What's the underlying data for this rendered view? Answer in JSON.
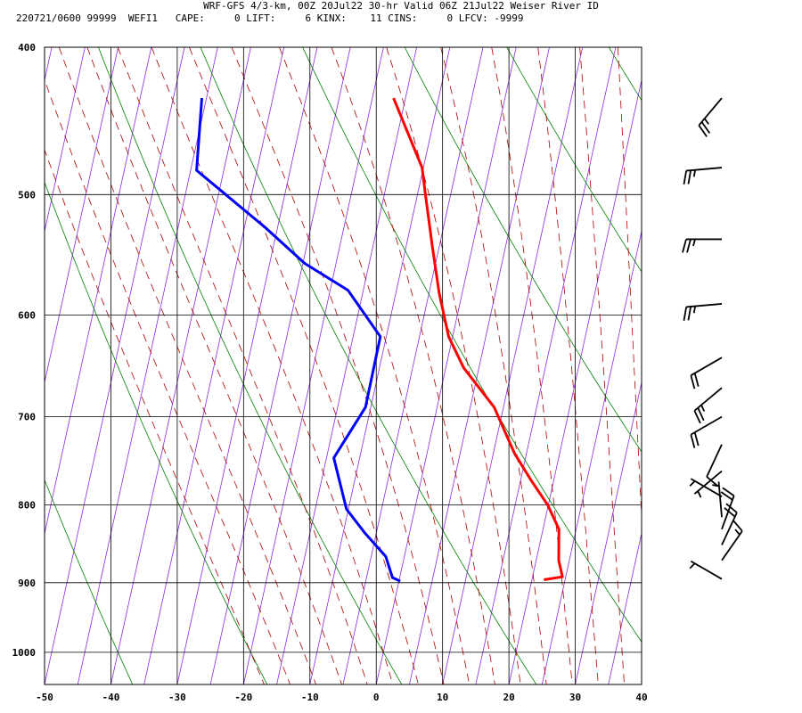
{
  "header": {
    "title": "WRF-GFS 4/3-km, 00Z 20Jul22 30-hr Valid 06Z 21Jul22 Weiser River ID",
    "indices": "220721/0600 99999  WEFI1   CAPE:     0 LIFT:     6 KINX:    11 CINS:     0 LFCV: -9999"
  },
  "colors": {
    "temperature": "#ff0000",
    "dewpoint": "#0000ff",
    "isotherm": "#8a2be2",
    "dry_adiabat": "#008000",
    "moist_adiabat": "#b00000",
    "grid": "#000000",
    "wind_barb": "#000000"
  },
  "chart_data": {
    "type": "line",
    "chart_kind": "skew-T log-p sounding",
    "y_scale": "log",
    "y_reversed": true,
    "ylim": [
      400,
      1050
    ],
    "xlim": [
      -50,
      40
    ],
    "x_ticks": [
      -50,
      -40,
      -30,
      -20,
      -10,
      0,
      10,
      20,
      30,
      40
    ],
    "y_ticks": [
      400,
      500,
      600,
      700,
      800,
      900,
      1000
    ],
    "grid": true,
    "series": [
      {
        "key": "temperature",
        "points": [
          [
            432,
            -16.8
          ],
          [
            480,
            -10.2
          ],
          [
            500,
            -8.8
          ],
          [
            540,
            -6.1
          ],
          [
            580,
            -3.5
          ],
          [
            620,
            -0.6
          ],
          [
            650,
            2.7
          ],
          [
            690,
            8.6
          ],
          [
            740,
            13.2
          ],
          [
            770,
            16.5
          ],
          [
            800,
            19.9
          ],
          [
            830,
            22.4
          ],
          [
            870,
            23.4
          ],
          [
            892,
            24.5
          ],
          [
            896,
            21.8
          ]
        ]
      },
      {
        "key": "dewpoint",
        "points": [
          [
            432,
            -45.7
          ],
          [
            482,
            -44.1
          ],
          [
            525,
            -32.0
          ],
          [
            555,
            -24.7
          ],
          [
            578,
            -17.3
          ],
          [
            620,
            -10.9
          ],
          [
            690,
            -10.8
          ],
          [
            745,
            -13.9
          ],
          [
            805,
            -10.3
          ],
          [
            835,
            -6.7
          ],
          [
            865,
            -2.8
          ],
          [
            893,
            -1.1
          ],
          [
            898,
            0.2
          ]
        ]
      }
    ],
    "wind_barbs": [
      {
        "p": 432,
        "dir": 220,
        "spd": 25
      },
      {
        "p": 480,
        "dir": 265,
        "spd": 25
      },
      {
        "p": 535,
        "dir": 270,
        "spd": 25
      },
      {
        "p": 590,
        "dir": 265,
        "spd": 25
      },
      {
        "p": 640,
        "dir": 240,
        "spd": 20
      },
      {
        "p": 670,
        "dir": 230,
        "spd": 25
      },
      {
        "p": 700,
        "dir": 240,
        "spd": 20
      },
      {
        "p": 730,
        "dir": 205,
        "spd": 10
      },
      {
        "p": 760,
        "dir": 230,
        "spd": 5
      },
      {
        "p": 790,
        "dir": 300,
        "spd": 5
      },
      {
        "p": 815,
        "dir": 355,
        "spd": 5
      },
      {
        "p": 830,
        "dir": 20,
        "spd": 20
      },
      {
        "p": 850,
        "dir": 25,
        "spd": 20
      },
      {
        "p": 870,
        "dir": 35,
        "spd": 15
      },
      {
        "p": 895,
        "dir": 300,
        "spd": 5
      }
    ]
  }
}
